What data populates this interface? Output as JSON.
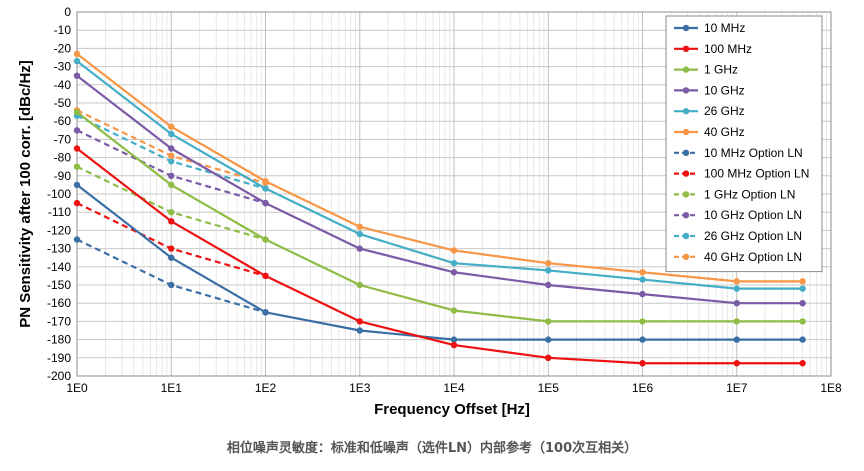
{
  "caption": "相位噪声灵敏度：标准和低噪声（选件LN）内部参考（100次互相关）",
  "chart_data": {
    "type": "line",
    "title": "",
    "xlabel": "Frequency Offset [Hz]",
    "ylabel": "PN Sensitivity after 100 corr. [dBc/Hz]",
    "xscale": "log",
    "xlim": [
      1,
      100000000
    ],
    "ylim": [
      -200,
      0
    ],
    "x_ticks": [
      "1E0",
      "1E1",
      "1E2",
      "1E3",
      "1E4",
      "1E5",
      "1E6",
      "1E7",
      "1E8"
    ],
    "y_ticks": [
      0,
      -10,
      -20,
      -30,
      -40,
      -50,
      -60,
      -70,
      -80,
      -90,
      -100,
      -110,
      -120,
      -130,
      -140,
      -150,
      -160,
      -170,
      -180,
      -190,
      -200
    ],
    "grid": true,
    "legend_position": "top-right",
    "series": [
      {
        "name": "10 MHz",
        "color": "#3a6ea5",
        "dashed": false,
        "x": [
          1,
          10,
          100,
          1000,
          10000,
          100000,
          1000000,
          10000000,
          50000000
        ],
        "y": [
          -95,
          -135,
          -165,
          -175,
          -180,
          -180,
          -180,
          -180,
          -180
        ]
      },
      {
        "name": "100 MHz",
        "color": "#ee1111",
        "dashed": false,
        "x": [
          1,
          10,
          100,
          1000,
          10000,
          100000,
          1000000,
          10000000,
          50000000
        ],
        "y": [
          -75,
          -115,
          -145,
          -170,
          -183,
          -190,
          -193,
          -193,
          -193
        ]
      },
      {
        "name": "1 GHz",
        "color": "#8fbc45",
        "dashed": false,
        "x": [
          1,
          10,
          100,
          1000,
          10000,
          100000,
          1000000,
          10000000,
          50000000
        ],
        "y": [
          -55,
          -95,
          -125,
          -150,
          -164,
          -170,
          -170,
          -170,
          -170
        ]
      },
      {
        "name": "10 GHz",
        "color": "#7b5aa6",
        "dashed": false,
        "x": [
          1,
          10,
          100,
          1000,
          10000,
          100000,
          1000000,
          10000000,
          50000000
        ],
        "y": [
          -35,
          -75,
          -105,
          -130,
          -143,
          -150,
          -155,
          -160,
          -160
        ]
      },
      {
        "name": "26 GHz",
        "color": "#44aec6",
        "dashed": false,
        "x": [
          1,
          10,
          100,
          1000,
          10000,
          100000,
          1000000,
          10000000,
          50000000
        ],
        "y": [
          -27,
          -67,
          -97,
          -122,
          -138,
          -142,
          -147,
          -152,
          -152
        ]
      },
      {
        "name": "40 GHz",
        "color": "#f79646",
        "dashed": false,
        "x": [
          1,
          10,
          100,
          1000,
          10000,
          100000,
          1000000,
          10000000,
          50000000
        ],
        "y": [
          -23,
          -63,
          -93,
          -118,
          -131,
          -138,
          -143,
          -148,
          -148
        ]
      },
      {
        "name": "10 MHz Option LN",
        "color": "#3a6ea5",
        "dashed": true,
        "x": [
          1,
          10,
          100
        ],
        "y": [
          -125,
          -150,
          -165
        ]
      },
      {
        "name": "100 MHz Option LN",
        "color": "#ee1111",
        "dashed": true,
        "x": [
          1,
          10,
          100
        ],
        "y": [
          -105,
          -130,
          -145
        ]
      },
      {
        "name": "1 GHz Option LN",
        "color": "#8fbc45",
        "dashed": true,
        "x": [
          1,
          10,
          100
        ],
        "y": [
          -85,
          -110,
          -125
        ]
      },
      {
        "name": "10 GHz Option LN",
        "color": "#7b5aa6",
        "dashed": true,
        "x": [
          1,
          10,
          100
        ],
        "y": [
          -65,
          -90,
          -105
        ]
      },
      {
        "name": "26 GHz Option LN",
        "color": "#44aec6",
        "dashed": true,
        "x": [
          1,
          10,
          100
        ],
        "y": [
          -57,
          -82,
          -97
        ]
      },
      {
        "name": "40 GHz Option LN",
        "color": "#f79646",
        "dashed": true,
        "x": [
          1,
          10,
          100
        ],
        "y": [
          -54,
          -79,
          -94
        ]
      }
    ]
  }
}
